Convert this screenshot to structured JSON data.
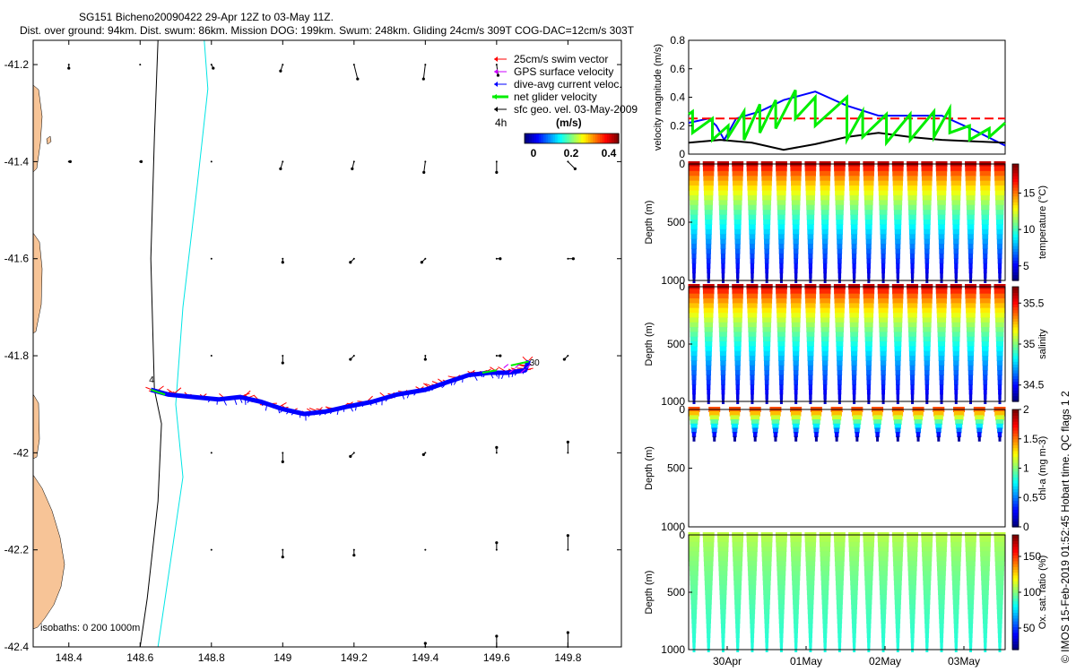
{
  "header": {
    "title": "SG151 Bicheno20090422 29-Apr 12Z to 03-May 11Z.",
    "subtitle": "Dist. over ground: 94km. Dist. swum: 86km. Mission DOG: 199km. Swum: 248km. Gliding 24cm/s 309T COG-DAC=12cm/s 303T"
  },
  "credit": "© IMOS 15-Feb-2019 01:52:45 Hobart time. QC flags 1  2",
  "colors": {
    "swim": "#ff0000",
    "gps": "#cc00ff",
    "dac": "#0000ff",
    "net": "#00ee00",
    "sfc": "#000000",
    "coast": "#f7c497",
    "isobath200": "#00e5e5"
  },
  "chart_data": [
    {
      "type": "map",
      "xlim": [
        148.3,
        149.95
      ],
      "ylim": [
        -42.4,
        -41.15
      ],
      "x_ticks": [
        148.4,
        148.6,
        148.8,
        149,
        149.2,
        149.4,
        149.6,
        149.8
      ],
      "x_tick_labels": [
        "148.4",
        "148.6",
        "148.8",
        "149",
        "149.2",
        "149.4",
        "149.6",
        "149.8"
      ],
      "y_ticks": [
        -41.2,
        -41.4,
        -41.6,
        -41.8,
        -42,
        -42.2,
        -42.4
      ],
      "y_tick_labels": [
        "-41.2",
        "-41.4",
        "-41.6",
        "-41.8",
        "-42",
        "-42.2",
        "-42.4"
      ],
      "legend": [
        {
          "label": "25cm/s swim vector",
          "color": "#ff0000"
        },
        {
          "label": "GPS surface velocity",
          "color": "#cc00ff"
        },
        {
          "label": "dive-avg current veloc.",
          "color": "#0000ff"
        },
        {
          "label": "net glider velocity",
          "color": "#00ee00"
        },
        {
          "label": "sfc geo. vel. 03-May-2009",
          "color": "#000000"
        }
      ],
      "legend_scale_label": "4h",
      "colorbar": {
        "label": "(m/s)",
        "ticks": [
          "0",
          "0.2",
          "0.4"
        ],
        "range": [
          0,
          0.5
        ]
      },
      "isobath_label": "isobaths: 0   200   1000m",
      "track_labels": [
        "4",
        "30"
      ],
      "track": [
        [
          148.63,
          -41.87
        ],
        [
          148.68,
          -41.88
        ],
        [
          148.75,
          -41.885
        ],
        [
          148.82,
          -41.89
        ],
        [
          148.88,
          -41.885
        ],
        [
          148.94,
          -41.895
        ],
        [
          149.0,
          -41.91
        ],
        [
          149.06,
          -41.92
        ],
        [
          149.12,
          -41.915
        ],
        [
          149.18,
          -41.905
        ],
        [
          149.25,
          -41.895
        ],
        [
          149.32,
          -41.88
        ],
        [
          149.4,
          -41.87
        ],
        [
          149.46,
          -41.855
        ],
        [
          149.52,
          -41.84
        ],
        [
          149.58,
          -41.835
        ],
        [
          149.63,
          -41.835
        ],
        [
          149.68,
          -41.83
        ],
        [
          149.69,
          -41.81
        ]
      ],
      "coast_1000m": [
        [
          148.65,
          -41.15
        ],
        [
          148.64,
          -41.35
        ],
        [
          148.63,
          -41.6
        ],
        [
          148.64,
          -41.87
        ],
        [
          148.66,
          -41.94
        ],
        [
          148.65,
          -42.1
        ],
        [
          148.62,
          -42.3
        ],
        [
          148.6,
          -42.4
        ]
      ],
      "coast_200m": [
        [
          148.78,
          -41.15
        ],
        [
          148.79,
          -41.25
        ],
        [
          148.76,
          -41.45
        ],
        [
          148.72,
          -41.7
        ],
        [
          148.7,
          -41.9
        ],
        [
          148.72,
          -42.05
        ],
        [
          148.69,
          -42.2
        ],
        [
          148.65,
          -42.4
        ]
      ],
      "geo_vectors": [
        [
          148.4,
          -41.2,
          0.0,
          -0.01
        ],
        [
          148.6,
          -41.2,
          0.0,
          0.0
        ],
        [
          148.8,
          -41.2,
          0.005,
          -0.01
        ],
        [
          149.0,
          -41.2,
          -0.006,
          -0.018
        ],
        [
          149.2,
          -41.2,
          0.01,
          -0.04
        ],
        [
          149.4,
          -41.2,
          -0.005,
          -0.04
        ],
        [
          149.6,
          -41.2,
          0.004,
          -0.03
        ],
        [
          148.4,
          -41.4,
          0.004,
          0.0
        ],
        [
          148.6,
          -41.4,
          0.003,
          0.0
        ],
        [
          148.8,
          -41.4,
          0.0,
          0.0
        ],
        [
          149.0,
          -41.4,
          -0.006,
          -0.02
        ],
        [
          149.2,
          -41.4,
          -0.005,
          -0.02
        ],
        [
          149.4,
          -41.4,
          -0.004,
          -0.03
        ],
        [
          149.6,
          -41.4,
          0.0,
          -0.03
        ],
        [
          149.8,
          -41.4,
          0.02,
          -0.02
        ],
        [
          148.8,
          -41.6,
          0.0,
          0.0
        ],
        [
          149.0,
          -41.6,
          0.0,
          -0.01
        ],
        [
          149.2,
          -41.6,
          -0.01,
          -0.01
        ],
        [
          149.4,
          -41.6,
          -0.01,
          -0.01
        ],
        [
          149.6,
          -41.6,
          0.01,
          0.0
        ],
        [
          149.8,
          -41.6,
          0.015,
          0.0
        ],
        [
          148.8,
          -41.8,
          0.0,
          0.0
        ],
        [
          149.0,
          -41.8,
          0.0,
          -0.02
        ],
        [
          149.2,
          -41.8,
          -0.01,
          -0.01
        ],
        [
          149.4,
          -41.8,
          0.0,
          -0.01
        ],
        [
          149.6,
          -41.8,
          0.01,
          0.0
        ],
        [
          149.8,
          -41.8,
          -0.01,
          -0.01
        ],
        [
          148.8,
          -42.0,
          0.0,
          0.0
        ],
        [
          149.0,
          -42.0,
          0.0,
          -0.025
        ],
        [
          149.2,
          -42.0,
          -0.01,
          -0.01
        ],
        [
          149.4,
          -42.0,
          -0.005,
          -0.005
        ],
        [
          149.6,
          -42.0,
          0.0,
          0.015
        ],
        [
          149.8,
          -42.0,
          0.0,
          0.03
        ],
        [
          148.8,
          -42.2,
          0.0,
          0.0
        ],
        [
          149.0,
          -42.2,
          0.0,
          -0.02
        ],
        [
          149.2,
          -42.2,
          0.0,
          -0.015
        ],
        [
          149.4,
          -42.2,
          0.0,
          0.0
        ],
        [
          149.6,
          -42.2,
          0.0,
          0.02
        ],
        [
          149.8,
          -42.2,
          0.0,
          0.04
        ],
        [
          149.4,
          -42.4,
          0.0,
          0.01
        ],
        [
          149.6,
          -42.4,
          0.0,
          0.03
        ],
        [
          149.8,
          -42.4,
          0.0,
          0.04
        ]
      ]
    },
    {
      "type": "line",
      "ylabel": "velocity magnitude (m/s)",
      "ylim": [
        0,
        0.8
      ],
      "y_ticks": [
        "0",
        "0.2",
        "0.4",
        "0.6",
        "0.8"
      ],
      "xlim": [
        0,
        4
      ],
      "series": [
        {
          "name": "dive-avg current veloc.",
          "color": "#0000ff",
          "x": [
            0,
            0.25,
            0.35,
            0.45,
            0.6,
            0.9,
            1.2,
            1.6,
            2.0,
            2.4,
            2.8,
            3.2,
            3.6,
            4.0
          ],
          "values": [
            0.22,
            0.25,
            0.2,
            0.1,
            0.25,
            0.3,
            0.38,
            0.44,
            0.34,
            0.27,
            0.27,
            0.27,
            0.17,
            0.06
          ]
        },
        {
          "name": "sfc geo. vel.",
          "color": "#000000",
          "x": [
            0,
            0.4,
            0.8,
            1.2,
            1.6,
            2.0,
            2.4,
            2.8,
            3.2,
            3.6,
            4.0
          ],
          "values": [
            0.08,
            0.1,
            0.08,
            0.03,
            0.07,
            0.12,
            0.15,
            0.12,
            0.1,
            0.09,
            0.08
          ]
        },
        {
          "name": "mean gliding speed",
          "color": "#ff0000",
          "x": [
            0,
            4
          ],
          "values": [
            0.25,
            0.25
          ]
        },
        {
          "name": "net glider velocity",
          "color": "#00ee00",
          "x": [
            0,
            0.05,
            0.05,
            0.3,
            0.3,
            0.5,
            0.5,
            0.7,
            0.7,
            0.9,
            0.9,
            1.1,
            1.1,
            1.35,
            1.35,
            1.6,
            1.6,
            2.0,
            2.0,
            2.2,
            2.2,
            2.5,
            2.5,
            2.8,
            2.8,
            3.1,
            3.1,
            3.3,
            3.3,
            3.55,
            3.55,
            3.8,
            3.8,
            4.0
          ],
          "values": [
            0.28,
            0.3,
            0.15,
            0.25,
            0.1,
            0.2,
            0.12,
            0.3,
            0.1,
            0.35,
            0.15,
            0.38,
            0.18,
            0.45,
            0.25,
            0.4,
            0.2,
            0.4,
            0.1,
            0.3,
            0.12,
            0.28,
            0.08,
            0.28,
            0.1,
            0.3,
            0.12,
            0.32,
            0.15,
            0.2,
            0.1,
            0.18,
            0.12,
            0.22
          ]
        }
      ]
    },
    {
      "type": "scatter",
      "ylabel": "Depth (m)",
      "clabel": "temperature (°C)",
      "ylim": [
        1000,
        0
      ],
      "y_ticks": [
        "0",
        "500",
        "1000"
      ],
      "c_ticks": [
        "15",
        "10",
        "5"
      ],
      "c_range": [
        3,
        19
      ],
      "profile_count": 22,
      "profile_max_depth": 1000,
      "surface_value": 18,
      "bottom_value": 4
    },
    {
      "type": "scatter",
      "ylabel": "Depth (m)",
      "clabel": "salinity",
      "ylim": [
        1000,
        0
      ],
      "y_ticks": [
        "0",
        "500",
        "1000"
      ],
      "c_ticks": [
        "35.5",
        "35",
        "34.5"
      ],
      "c_range": [
        34.3,
        35.7
      ],
      "profile_count": 22,
      "profile_max_depth": 1000,
      "surface_value": 35.6,
      "bottom_value": 34.4
    },
    {
      "type": "scatter",
      "ylabel": "Depth (m)",
      "clabel": "chl-a (mg m-3)",
      "ylim": [
        1000,
        0
      ],
      "y_ticks": [
        "0",
        "500",
        "1000"
      ],
      "c_ticks": [
        "2",
        "1.5",
        "1",
        "0.5",
        "0"
      ],
      "c_range": [
        0,
        2
      ],
      "profile_count": 16,
      "profile_max_depth": 250,
      "surface_value": 1.6,
      "bottom_value": 0.05
    },
    {
      "type": "scatter",
      "ylabel": "Depth (m)",
      "clabel": "Ox. sat. ratio (%)",
      "ylim": [
        1000,
        0
      ],
      "y_ticks": [
        "0",
        "500",
        "1000"
      ],
      "c_ticks": [
        "150",
        "100",
        "50"
      ],
      "c_range": [
        20,
        180
      ],
      "profile_count": 22,
      "profile_max_depth": 1000,
      "surface_value": 110,
      "bottom_value": 85,
      "x_ticks": [
        "30Apr",
        "01May",
        "02May",
        "03May"
      ]
    }
  ]
}
